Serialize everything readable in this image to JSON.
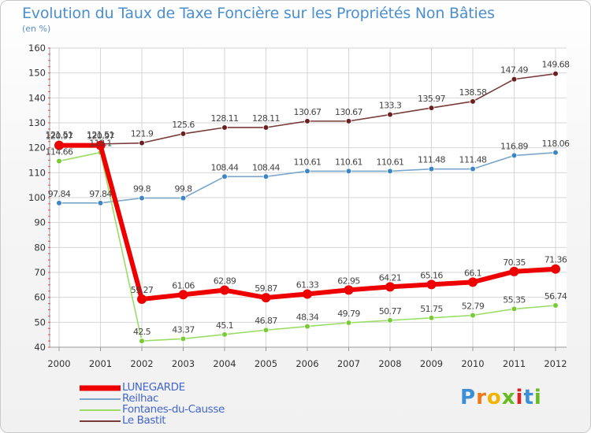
{
  "chart_data": {
    "type": "line",
    "title": "Evolution du Taux de Taxe Foncière sur les Propriétés Non Bâties",
    "ylabel": "(en %)",
    "xlabel": "",
    "categories": [
      "2000",
      "2001",
      "2002",
      "2003",
      "2004",
      "2005",
      "2006",
      "2007",
      "2008",
      "2009",
      "2010",
      "2011",
      "2012"
    ],
    "ylim": [
      40,
      160
    ],
    "yticks": [
      40,
      50,
      60,
      70,
      80,
      90,
      100,
      110,
      120,
      130,
      140,
      150,
      160
    ],
    "series": [
      {
        "name": "LUNEGARDE",
        "color": "#ee0000",
        "values": [
          120.97,
          120.97,
          59.27,
          61.06,
          62.89,
          59.87,
          61.33,
          62.95,
          64.21,
          65.16,
          66.1,
          70.35,
          71.36
        ],
        "labels": [
          "120.97",
          "120.97",
          "59.27",
          "61.06",
          "62.89",
          "59.87",
          "61.33",
          "62.95",
          "64.21",
          "65.16",
          "66.1",
          "70.35",
          "71.36"
        ]
      },
      {
        "name": "Reilhac",
        "color": "#7aa6cc",
        "values": [
          97.84,
          97.84,
          99.8,
          99.8,
          108.44,
          108.44,
          110.61,
          110.61,
          110.61,
          111.48,
          111.48,
          116.89,
          118.06
        ],
        "labels": [
          "97.84",
          "97.84",
          "99.8",
          "99.8",
          "108.44",
          "108.44",
          "110.61",
          "110.61",
          "110.61",
          "111.48",
          "111.48",
          "116.89",
          "118.06"
        ]
      },
      {
        "name": "Fontanes-du-Causse",
        "color": "#99dd66",
        "values": [
          114.66,
          118.1,
          42.5,
          43.37,
          45.1,
          46.87,
          48.34,
          49.79,
          50.77,
          51.75,
          52.79,
          55.35,
          56.74
        ],
        "labels": [
          "114.66",
          "118.1",
          "42.5",
          "43.37",
          "45.1",
          "46.87",
          "48.34",
          "49.79",
          "50.77",
          "51.75",
          "52.79",
          "55.35",
          "56.74"
        ]
      },
      {
        "name": "Le Bastit",
        "color": "#7a3b3b",
        "values": [
          121.51,
          121.51,
          121.9,
          125.6,
          128.11,
          128.11,
          130.67,
          130.67,
          133.3,
          135.97,
          138.58,
          147.49,
          149.68
        ],
        "labels": [
          "121.51",
          "121.51",
          "121.9",
          "125.6",
          "128.11",
          "128.11",
          "130.67",
          "130.67",
          "133.3",
          "135.97",
          "138.58",
          "147.49",
          "149.68"
        ]
      }
    ]
  },
  "logo": {
    "text": "Proxiti"
  }
}
